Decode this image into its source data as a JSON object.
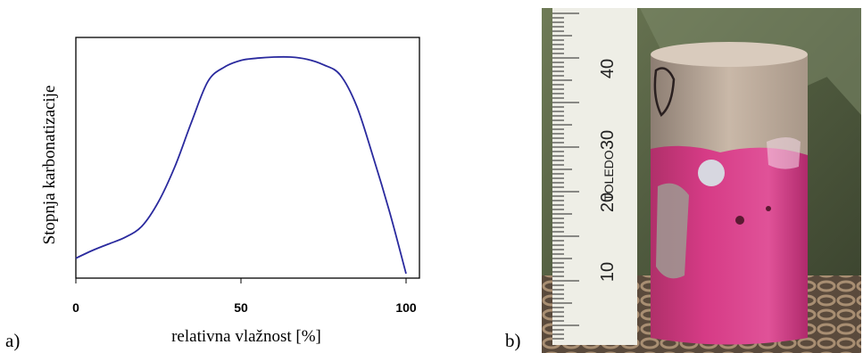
{
  "panel_labels": {
    "left": "a)",
    "right": "b)"
  },
  "photo": {
    "ruler_numbers": [
      "40",
      "30",
      "20",
      "10"
    ],
    "ruler_brand": "TOLEDO"
  },
  "chart_data": {
    "type": "line",
    "title": "",
    "xlabel": "relativna vlažnost [%]",
    "ylabel": "Stopnja karbonatizacije",
    "xlim": [
      0,
      100
    ],
    "ylim": [
      0,
      1
    ],
    "xticks": [
      0,
      50,
      100
    ],
    "ytick_labels": false,
    "grid": false,
    "legend": "none",
    "color": "#2a2a9e",
    "series": [
      {
        "x": [
          0,
          5,
          10,
          15,
          20,
          25,
          30,
          35,
          40,
          45,
          50,
          55,
          60,
          65,
          70,
          75,
          80,
          85,
          90,
          95,
          100
        ],
        "y": [
          0.09,
          0.125,
          0.155,
          0.185,
          0.235,
          0.345,
          0.505,
          0.705,
          0.89,
          0.955,
          0.985,
          0.995,
          1.0,
          1.0,
          0.99,
          0.965,
          0.92,
          0.78,
          0.55,
          0.3,
          0.02
        ]
      }
    ]
  }
}
